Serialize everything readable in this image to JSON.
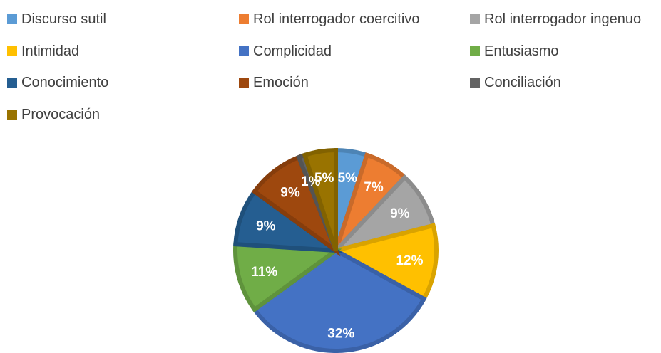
{
  "chart_data": {
    "type": "pie",
    "title": "",
    "categories": [
      "Discurso sutil",
      "Rol interrogador coercitivo",
      "Rol interrogador ingenuo",
      "Intimidad",
      "Complicidad",
      "Entusiasmo",
      "Conocimiento",
      "Emoción",
      "Conciliación",
      "Provocación"
    ],
    "values": [
      5,
      7,
      9,
      12,
      32,
      11,
      9,
      9,
      1,
      5
    ],
    "data_labels": [
      "5%",
      "7%",
      "9%",
      "12%",
      "32%",
      "11%",
      "9%",
      "9%",
      "1%",
      "5%"
    ],
    "colors": [
      "#5b9bd5",
      "#ed7d31",
      "#a5a5a5",
      "#ffc000",
      "#4472c4",
      "#70ad47",
      "#255e91",
      "#9e480e",
      "#636363",
      "#997300"
    ],
    "legend_position": "top"
  }
}
